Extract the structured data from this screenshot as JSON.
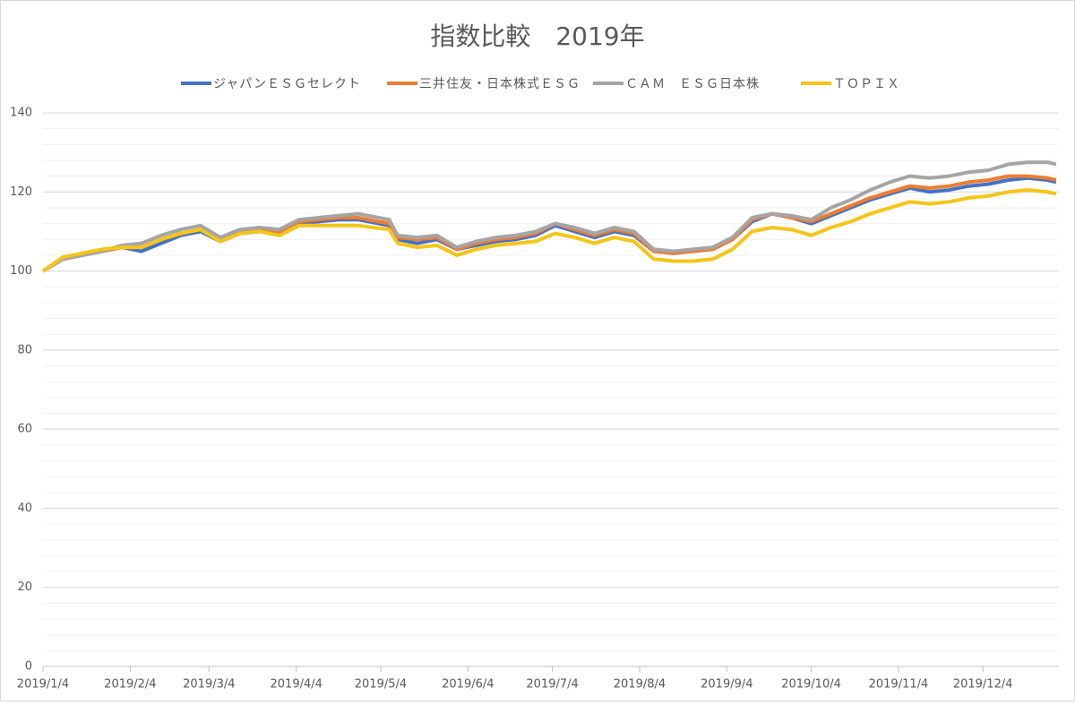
{
  "chart_data": {
    "type": "line",
    "title": "指数比較　2019年",
    "x": [
      "2019/1/4",
      "2019/1/11",
      "2019/1/18",
      "2019/1/25",
      "2019/2/1",
      "2019/2/8",
      "2019/2/15",
      "2019/2/22",
      "2019/3/1",
      "2019/3/8",
      "2019/3/15",
      "2019/3/22",
      "2019/3/29",
      "2019/4/5",
      "2019/4/12",
      "2019/4/19",
      "2019/4/26",
      "2019/5/7",
      "2019/5/10",
      "2019/5/17",
      "2019/5/24",
      "2019/5/31",
      "2019/6/7",
      "2019/6/14",
      "2019/6/21",
      "2019/6/28",
      "2019/7/5",
      "2019/7/12",
      "2019/7/19",
      "2019/7/26",
      "2019/8/2",
      "2019/8/9",
      "2019/8/16",
      "2019/8/23",
      "2019/8/30",
      "2019/9/6",
      "2019/9/13",
      "2019/9/20",
      "2019/9/27",
      "2019/10/4",
      "2019/10/11",
      "2019/10/18",
      "2019/10/25",
      "2019/11/1",
      "2019/11/8",
      "2019/11/15",
      "2019/11/22",
      "2019/11/29",
      "2019/12/6",
      "2019/12/13",
      "2019/12/20",
      "2019/12/27",
      "2019/12/30"
    ],
    "series": [
      {
        "name": "ジャパンＥＳＧセレクト",
        "color": "#4472c4",
        "values": [
          100,
          103,
          104,
          105,
          106,
          105,
          107,
          109,
          110,
          107.5,
          109.5,
          110,
          109.5,
          112,
          112.5,
          113,
          113,
          111.5,
          108,
          107,
          108,
          105.5,
          106.5,
          107.5,
          108,
          109,
          111.5,
          110,
          108.5,
          110,
          109,
          105,
          104.5,
          105,
          105.5,
          108,
          112.5,
          114.5,
          113.5,
          112,
          114,
          116,
          118,
          119.5,
          121,
          120,
          120.5,
          121.5,
          122,
          123,
          123.5,
          123,
          122.5
        ]
      },
      {
        "name": "三井住友・日本株式ＥＳＧ",
        "color": "#ed7d31",
        "values": [
          100,
          103,
          104,
          105,
          106,
          106,
          108,
          109.5,
          110.5,
          108,
          110,
          110.5,
          110,
          112.5,
          113,
          113.5,
          113.5,
          112,
          108.5,
          108,
          108.5,
          105.5,
          107,
          108,
          108.5,
          109.5,
          112,
          110.5,
          109,
          110.5,
          109.5,
          105,
          104.5,
          105,
          105.5,
          108,
          113,
          114.5,
          113.5,
          112.5,
          114.5,
          116.5,
          118.5,
          120,
          121.5,
          121,
          121.5,
          122.5,
          123,
          124,
          124,
          123.5,
          123
        ]
      },
      {
        "name": "ＣＡＭ　ＥＳＧ日本株",
        "color": "#a5a5a5",
        "values": [
          100,
          103,
          104,
          105,
          106.5,
          107,
          109,
          110.5,
          111.5,
          108.5,
          110.5,
          111,
          110.5,
          113,
          113.5,
          114,
          114.5,
          113,
          109,
          108.5,
          109,
          106,
          107.5,
          108.5,
          109,
          110,
          112,
          111,
          109.5,
          111,
          110,
          105.5,
          105,
          105.5,
          106,
          108.5,
          113.5,
          114.5,
          114,
          113,
          116,
          118,
          120.5,
          122.5,
          124,
          123.5,
          124,
          125,
          125.5,
          127,
          127.5,
          127.5,
          127
        ]
      },
      {
        "name": "ＴＯＰＩＸ",
        "color": "#f5c518",
        "values": [
          100,
          103.5,
          104.5,
          105.5,
          106,
          106,
          108,
          109.5,
          110.5,
          107.5,
          109.5,
          110,
          109,
          111.5,
          111.5,
          111.5,
          111.5,
          110.5,
          107,
          106,
          106.5,
          104,
          105.5,
          106.5,
          107,
          107.5,
          109.5,
          108.5,
          107,
          108.5,
          107.5,
          103,
          102.5,
          102.5,
          103,
          105.5,
          110,
          111,
          110.5,
          109,
          111,
          112.5,
          114.5,
          116,
          117.5,
          117,
          117.5,
          118.5,
          119,
          120,
          120.5,
          120,
          119.5
        ]
      }
    ],
    "xlim": [
      "2019/1/4",
      "2019/12/31"
    ],
    "xticks": [
      "2019/1/4",
      "2019/2/4",
      "2019/3/4",
      "2019/4/4",
      "2019/5/4",
      "2019/6/4",
      "2019/7/4",
      "2019/8/4",
      "2019/9/4",
      "2019/10/4",
      "2019/11/4",
      "2019/12/4"
    ],
    "ylim": [
      0,
      140
    ],
    "yticks": [
      0,
      20,
      40,
      60,
      80,
      100,
      120,
      140
    ],
    "y_minor_step": 4,
    "grid": true,
    "legend": "top"
  }
}
